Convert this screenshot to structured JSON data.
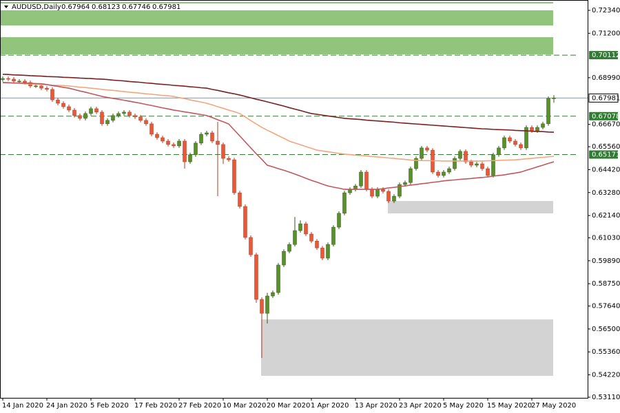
{
  "header": {
    "symbol": "AUDUSD,Daily"
  },
  "chart_data": {
    "type": "candlestick",
    "categories": [
      "14 Jan 2020",
      null,
      null,
      null,
      null,
      null,
      null,
      null,
      "24 Jan 2020",
      null,
      null,
      null,
      null,
      null,
      null,
      null,
      "5 Feb 2020",
      null,
      null,
      null,
      null,
      null,
      null,
      null,
      "17 Feb 2020",
      null,
      null,
      null,
      null,
      null,
      null,
      null,
      "27 Feb 2020",
      null,
      null,
      null,
      null,
      null,
      null,
      null,
      "10 Mar 2020",
      null,
      null,
      null,
      null,
      null,
      null,
      null,
      "20 Mar 2020",
      null,
      null,
      null,
      null,
      null,
      null,
      null,
      "1 Apr 2020",
      null,
      null,
      null,
      null,
      null,
      null,
      null,
      "13 Apr 2020",
      null,
      null,
      null,
      null,
      null,
      null,
      null,
      "23 Apr 2020",
      null,
      null,
      null,
      null,
      null,
      null,
      null,
      "5 May 2020",
      null,
      null,
      null,
      null,
      null,
      null,
      null,
      "15 May 2020",
      null,
      null,
      null,
      null,
      null,
      null,
      null,
      "27 May 2020",
      null,
      null,
      null,
      null
    ],
    "open": [
      0.689,
      0.6895,
      0.6892,
      0.6882,
      0.6882,
      0.6875,
      0.6858,
      0.6858,
      0.6847,
      0.6841,
      0.6789,
      0.6772,
      0.6755,
      0.6738,
      0.6711,
      0.6697,
      0.6721,
      0.6745,
      0.6728,
      0.667,
      0.6687,
      0.6711,
      0.6721,
      0.6728,
      0.6711,
      0.6704,
      0.6687,
      0.667,
      0.6618,
      0.6601,
      0.6584,
      0.6567,
      0.656,
      0.6584,
      0.6481,
      0.6516,
      0.6574,
      0.6618,
      0.6625,
      0.6584,
      0.6567,
      0.6498,
      0.6491,
      0.6327,
      0.6259,
      0.6105,
      0.6019,
      0.5797,
      0.5728,
      0.5814,
      0.5831,
      0.5968,
      0.6036,
      0.607,
      0.6139,
      0.6173,
      0.6122,
      0.6087,
      0.6053,
      0.6002,
      0.607,
      0.6156,
      0.6225,
      0.6327,
      0.6344,
      0.6361,
      0.643,
      0.6344,
      0.631,
      0.6344,
      0.6334,
      0.6286,
      0.631,
      0.6368,
      0.6378,
      0.6447,
      0.6498,
      0.655,
      0.6539,
      0.643,
      0.6413,
      0.643,
      0.6447,
      0.6498,
      0.6533,
      0.6481,
      0.6464,
      0.6471,
      0.6447,
      0.6413,
      0.6516,
      0.655,
      0.6601,
      0.6584,
      0.6567,
      0.655,
      0.6652,
      0.6635,
      0.6652,
      0.667,
      0.67964
    ],
    "high": [
      0.6905,
      0.6905,
      0.6902,
      0.6892,
      0.6892,
      0.6885,
      0.6868,
      0.6868,
      0.6857,
      0.6851,
      0.6799,
      0.6782,
      0.6765,
      0.6748,
      0.6721,
      0.6731,
      0.6755,
      0.6755,
      0.6738,
      0.6697,
      0.6721,
      0.6731,
      0.6738,
      0.6738,
      0.6721,
      0.6714,
      0.6697,
      0.668,
      0.6628,
      0.6611,
      0.6594,
      0.6577,
      0.6594,
      0.6594,
      0.6526,
      0.6584,
      0.6628,
      0.6635,
      0.6635,
      0.668,
      0.6577,
      0.6508,
      0.6501,
      0.6337,
      0.6269,
      0.6115,
      0.6029,
      0.5807,
      0.583,
      0.5841,
      0.5978,
      0.6046,
      0.608,
      0.6207,
      0.619,
      0.6183,
      0.6132,
      0.6097,
      0.6063,
      0.608,
      0.6166,
      0.6235,
      0.6337,
      0.6354,
      0.6371,
      0.644,
      0.644,
      0.6354,
      0.6354,
      0.6354,
      0.6344,
      0.632,
      0.6378,
      0.6388,
      0.6457,
      0.6508,
      0.656,
      0.656,
      0.6549,
      0.644,
      0.644,
      0.6457,
      0.6508,
      0.6543,
      0.6543,
      0.6491,
      0.6481,
      0.6481,
      0.6457,
      0.6526,
      0.656,
      0.6611,
      0.6611,
      0.6594,
      0.6577,
      0.6662,
      0.6662,
      0.6662,
      0.668,
      0.6806,
      0.68123
    ],
    "low": [
      0.688,
      0.6882,
      0.6872,
      0.6872,
      0.6865,
      0.6848,
      0.6848,
      0.6837,
      0.6831,
      0.6779,
      0.6762,
      0.6745,
      0.6728,
      0.6701,
      0.6687,
      0.6687,
      0.6711,
      0.6718,
      0.666,
      0.666,
      0.6677,
      0.6701,
      0.6711,
      0.6701,
      0.6694,
      0.6677,
      0.666,
      0.6608,
      0.6591,
      0.6574,
      0.6557,
      0.655,
      0.655,
      0.6447,
      0.6471,
      0.6506,
      0.6564,
      0.6608,
      0.6574,
      0.631,
      0.647,
      0.6481,
      0.6317,
      0.6249,
      0.6095,
      0.6009,
      0.578,
      0.5506,
      0.5677,
      0.5804,
      0.5821,
      0.5958,
      0.6026,
      0.606,
      0.6129,
      0.6112,
      0.6077,
      0.6043,
      0.5992,
      0.5992,
      0.606,
      0.6146,
      0.6215,
      0.6317,
      0.6334,
      0.6351,
      0.6334,
      0.63,
      0.63,
      0.6324,
      0.6276,
      0.6276,
      0.63,
      0.6358,
      0.6368,
      0.6437,
      0.6488,
      0.6529,
      0.642,
      0.6403,
      0.6403,
      0.642,
      0.6437,
      0.6488,
      0.6471,
      0.6454,
      0.6454,
      0.6437,
      0.6403,
      0.6403,
      0.6506,
      0.654,
      0.6574,
      0.6557,
      0.654,
      0.654,
      0.6625,
      0.6625,
      0.6642,
      0.666,
      0.67746
    ],
    "close": [
      0.6895,
      0.6892,
      0.6882,
      0.6882,
      0.6875,
      0.6858,
      0.6858,
      0.6847,
      0.6841,
      0.6789,
      0.6772,
      0.6755,
      0.6738,
      0.6711,
      0.6697,
      0.6721,
      0.6745,
      0.6728,
      0.667,
      0.6687,
      0.6711,
      0.6721,
      0.6728,
      0.6711,
      0.6704,
      0.6687,
      0.667,
      0.6618,
      0.6601,
      0.6584,
      0.6567,
      0.656,
      0.6584,
      0.6481,
      0.6516,
      0.6574,
      0.6618,
      0.6625,
      0.6584,
      0.6567,
      0.6498,
      0.6491,
      0.6327,
      0.6259,
      0.6105,
      0.6019,
      0.5797,
      0.5728,
      0.5814,
      0.5831,
      0.5968,
      0.6036,
      0.607,
      0.6139,
      0.6173,
      0.6122,
      0.6087,
      0.6053,
      0.6002,
      0.607,
      0.6156,
      0.6225,
      0.6327,
      0.6344,
      0.6361,
      0.643,
      0.6344,
      0.631,
      0.6344,
      0.6334,
      0.6286,
      0.631,
      0.6368,
      0.6378,
      0.6447,
      0.6498,
      0.655,
      0.6539,
      0.643,
      0.6413,
      0.643,
      0.6447,
      0.6498,
      0.6533,
      0.6481,
      0.6464,
      0.6471,
      0.6447,
      0.6413,
      0.6516,
      0.655,
      0.6601,
      0.6584,
      0.6567,
      0.655,
      0.6652,
      0.6635,
      0.6652,
      0.667,
      0.6796,
      0.67981
    ],
    "bull_color": "#5b8f2b",
    "bear_color": "#e65a3a",
    "lines": [
      {
        "color": "#7b1f1f",
        "values": [
          0.6916,
          0.6915,
          0.6913,
          0.6912,
          0.6911,
          0.6909,
          0.6908,
          0.6907,
          0.6905,
          0.6904,
          0.6903,
          0.6901,
          0.69,
          0.6899,
          0.6897,
          0.6896,
          0.6895,
          0.6893,
          0.6892,
          0.689,
          0.6887,
          0.6885,
          0.6883,
          0.688,
          0.6878,
          0.6876,
          0.6873,
          0.6871,
          0.6868,
          0.6866,
          0.6864,
          0.6861,
          0.6859,
          0.6857,
          0.6854,
          0.6852,
          0.6849,
          0.6847,
          0.6841,
          0.6836,
          0.683,
          0.6824,
          0.6819,
          0.6813,
          0.6806,
          0.6799,
          0.6792,
          0.6786,
          0.6779,
          0.6772,
          0.6765,
          0.6758,
          0.675,
          0.6743,
          0.6736,
          0.6728,
          0.6721,
          0.6717,
          0.6713,
          0.6709,
          0.6705,
          0.6701,
          0.6697,
          0.6695,
          0.6693,
          0.6691,
          0.6688,
          0.6686,
          0.6684,
          0.6682,
          0.668,
          0.6678,
          0.6675,
          0.6673,
          0.6671,
          0.6669,
          0.6667,
          0.6665,
          0.6663,
          0.6661,
          0.6659,
          0.6657,
          0.6655,
          0.6653,
          0.6651,
          0.6649,
          0.6647,
          0.6645,
          0.6644,
          0.6642,
          0.6641,
          0.664,
          0.6639,
          0.6637,
          0.6636,
          0.6635,
          0.6633,
          0.6632,
          0.6631,
          0.6629,
          0.6628
        ]
      },
      {
        "color": "#f5a47c",
        "values": [
          0.6875,
          0.6874,
          0.6872,
          0.6871,
          0.6869,
          0.6868,
          0.6867,
          0.6865,
          0.6864,
          0.6862,
          0.6861,
          0.686,
          0.6858,
          0.6855,
          0.6852,
          0.685,
          0.6847,
          0.6844,
          0.6841,
          0.6838,
          0.6836,
          0.6833,
          0.683,
          0.6827,
          0.6825,
          0.6822,
          0.6819,
          0.6817,
          0.6814,
          0.6811,
          0.6809,
          0.6806,
          0.68,
          0.6795,
          0.6789,
          0.6783,
          0.6778,
          0.6772,
          0.6764,
          0.6755,
          0.6747,
          0.6738,
          0.673,
          0.6721,
          0.6704,
          0.6686,
          0.6669,
          0.6652,
          0.6638,
          0.6625,
          0.6611,
          0.6598,
          0.6584,
          0.6575,
          0.6566,
          0.6557,
          0.6548,
          0.6539,
          0.6535,
          0.6531,
          0.6527,
          0.6523,
          0.6519,
          0.6517,
          0.6514,
          0.6512,
          0.651,
          0.6507,
          0.6505,
          0.6503,
          0.65,
          0.6498,
          0.6495,
          0.6493,
          0.649,
          0.6488,
          0.6487,
          0.6487,
          0.6486,
          0.6486,
          0.6485,
          0.6485,
          0.6485,
          0.6485,
          0.6485,
          0.6485,
          0.6485,
          0.6485,
          0.6486,
          0.6487,
          0.6488,
          0.6489,
          0.649,
          0.6491,
          0.6493,
          0.6496,
          0.6498,
          0.6501,
          0.6503,
          0.6506,
          0.6508
        ]
      },
      {
        "color": "#c4555a",
        "values": [
          0.6875,
          0.6874,
          0.6873,
          0.6873,
          0.6872,
          0.6871,
          0.687,
          0.6869,
          0.6865,
          0.686,
          0.6856,
          0.6851,
          0.6847,
          0.684,
          0.6833,
          0.6827,
          0.682,
          0.6813,
          0.6806,
          0.6801,
          0.6796,
          0.6792,
          0.6787,
          0.6782,
          0.6777,
          0.6772,
          0.6766,
          0.6761,
          0.6755,
          0.6749,
          0.6744,
          0.6738,
          0.6734,
          0.6729,
          0.6725,
          0.672,
          0.6716,
          0.6711,
          0.6701,
          0.669,
          0.668,
          0.6669,
          0.6639,
          0.661,
          0.658,
          0.655,
          0.6521,
          0.6493,
          0.6464,
          0.6456,
          0.6447,
          0.6439,
          0.643,
          0.642,
          0.641,
          0.6399,
          0.6389,
          0.638,
          0.637,
          0.6361,
          0.6355,
          0.635,
          0.6344,
          0.6344,
          0.6344,
          0.6344,
          0.6344,
          0.6344,
          0.6344,
          0.6347,
          0.6351,
          0.6354,
          0.6358,
          0.6361,
          0.6365,
          0.6368,
          0.6372,
          0.6375,
          0.6379,
          0.6382,
          0.6386,
          0.6389,
          0.6391,
          0.6394,
          0.6396,
          0.6398,
          0.6401,
          0.6403,
          0.6406,
          0.641,
          0.6413,
          0.6416,
          0.6421,
          0.6425,
          0.643,
          0.6439,
          0.6447,
          0.6456,
          0.6464,
          0.6473,
          0.6481
        ]
      }
    ],
    "zones": [
      {
        "low": 0.71587,
        "high": 0.7234,
        "color": "#93c47d"
      },
      {
        "low": 0.7015,
        "high": 0.71005,
        "color": "#93c47d"
      },
      {
        "low": 0.62245,
        "high": 0.62861,
        "color": "#d3d3d3"
      },
      {
        "low": 0.54169,
        "high": 0.56975,
        "color": "#d3d3d3"
      }
    ],
    "levels": [
      {
        "value": 0.70112,
        "color": "#2f7d32"
      },
      {
        "value": 0.67078,
        "color": "#2f7d32"
      },
      {
        "value": 0.65171,
        "color": "#2f7d32"
      }
    ],
    "ylim": [
      0.53076,
      0.72853
    ],
    "yticks": [
      {
        "value": 0.7234,
        "label": "0.72340"
      },
      {
        "value": 0.712,
        "label": "0.71200"
      },
      {
        "value": 0.6899,
        "label": "0.68990"
      },
      {
        "value": 0.6667,
        "label": "0.66670"
      },
      {
        "value": 0.6556,
        "label": "0.65560"
      },
      {
        "value": 0.6442,
        "label": "0.64420"
      },
      {
        "value": 0.6328,
        "label": "0.63280"
      },
      {
        "value": 0.6214,
        "label": "0.62140"
      },
      {
        "value": 0.6103,
        "label": "0.61030"
      },
      {
        "value": 0.5989,
        "label": "0.59890"
      },
      {
        "value": 0.5875,
        "label": "0.58750"
      },
      {
        "value": 0.5764,
        "label": "0.57640"
      },
      {
        "value": 0.565,
        "label": "0.56500"
      },
      {
        "value": 0.5536,
        "label": "0.55360"
      },
      {
        "value": 0.5422,
        "label": "0.54220"
      },
      {
        "value": 0.5311,
        "label": "0.53110"
      }
    ]
  }
}
